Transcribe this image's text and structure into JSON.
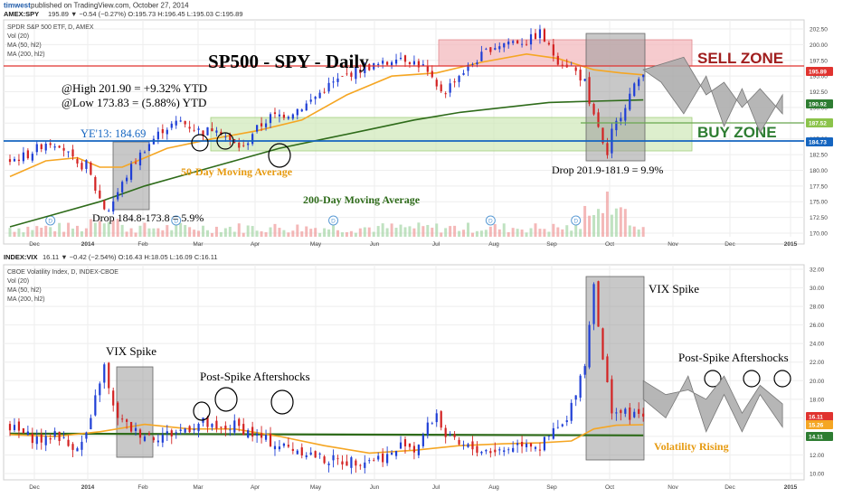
{
  "header": {
    "author": "timwest",
    "published": "published on TradingView.com, October 27, 2014",
    "top_symbol": "AMEX:SPY",
    "top_quote": "195.89 ▼ −0.54 (−0.27%) O:195.73 H:196.45 L:195.03 C:195.89",
    "bottom_symbol": "INDEX:VIX",
    "bottom_quote": "16.11 ▼ −0.42 (−2.54%) O:16.43 H:18.05 L:16.09 C:16.11"
  },
  "chart_data": [
    {
      "type": "candlestick",
      "title": "SP500 - SPY - Daily",
      "legend": [
        "SPDR S&P 500 ETF, D, AMEX",
        "Vol (20)",
        "MA (50, hl2)",
        "MA (200, hl2)"
      ],
      "x_ticks": [
        "Dec",
        "2014",
        "Feb",
        "Mar",
        "Apr",
        "May",
        "Jun",
        "Jul",
        "Aug",
        "Sep",
        "Oct",
        "Nov",
        "Dec",
        "2015"
      ],
      "y_ticks": [
        "202.50",
        "200.00",
        "197.50",
        "195.00",
        "192.50",
        "190.00",
        "187.50",
        "185.00",
        "182.50",
        "180.00",
        "177.50",
        "175.00",
        "172.50",
        "170.00"
      ],
      "ylim": [
        169,
        203.5
      ],
      "price_path": [
        [
          0,
          181.5
        ],
        [
          4,
          182.5
        ],
        [
          8,
          184.5
        ],
        [
          11,
          184.3
        ],
        [
          13,
          182.5
        ],
        [
          15,
          180.5
        ],
        [
          17,
          181
        ],
        [
          19,
          177
        ],
        [
          21,
          174
        ],
        [
          22,
          173.83
        ],
        [
          24,
          176.5
        ],
        [
          27,
          180.5
        ],
        [
          30,
          183.5
        ],
        [
          34,
          186.5
        ],
        [
          38,
          187.8
        ],
        [
          40,
          187
        ],
        [
          43,
          186
        ],
        [
          46,
          187
        ],
        [
          49,
          184.5
        ],
        [
          52,
          183.5
        ],
        [
          54,
          186
        ],
        [
          58,
          188.5
        ],
        [
          62,
          189
        ],
        [
          66,
          190.5
        ],
        [
          71,
          193.5
        ],
        [
          76,
          195.5
        ],
        [
          80,
          196.5
        ],
        [
          84,
          197
        ],
        [
          86,
          198.3
        ],
        [
          89,
          197.5
        ],
        [
          92,
          196.5
        ],
        [
          95,
          193
        ],
        [
          97,
          192.6
        ],
        [
          99,
          194.5
        ],
        [
          103,
          197
        ],
        [
          107,
          199.5
        ],
        [
          111,
          200.5
        ],
        [
          115,
          200.5
        ],
        [
          118,
          201.9
        ],
        [
          120,
          199.5
        ],
        [
          122,
          197.5
        ],
        [
          125,
          196.5
        ],
        [
          128,
          194
        ],
        [
          129,
          190
        ],
        [
          131,
          187
        ],
        [
          132,
          184
        ],
        [
          133,
          181.9
        ],
        [
          134,
          186
        ],
        [
          136,
          189
        ],
        [
          138,
          192
        ],
        [
          140,
          194.5
        ],
        [
          141,
          195.89
        ]
      ],
      "ma50_path": [
        [
          0,
          179
        ],
        [
          8,
          181.5
        ],
        [
          15,
          182
        ],
        [
          20,
          180.5
        ],
        [
          25,
          180.5
        ],
        [
          30,
          182
        ],
        [
          35,
          183.5
        ],
        [
          45,
          185
        ],
        [
          55,
          186.3
        ],
        [
          65,
          188
        ],
        [
          75,
          192
        ],
        [
          85,
          195
        ],
        [
          95,
          195.5
        ],
        [
          105,
          197.2
        ],
        [
          115,
          198.5
        ],
        [
          122,
          197.8
        ],
        [
          130,
          196
        ],
        [
          136,
          195.5
        ],
        [
          141,
          195.2
        ]
      ],
      "ma200_path": [
        [
          0,
          171
        ],
        [
          10,
          173
        ],
        [
          20,
          175
        ],
        [
          30,
          177.5
        ],
        [
          40,
          179.5
        ],
        [
          50,
          181.5
        ],
        [
          60,
          183.5
        ],
        [
          70,
          185
        ],
        [
          80,
          186.5
        ],
        [
          90,
          188
        ],
        [
          100,
          189.2
        ],
        [
          110,
          190
        ],
        [
          120,
          190.8
        ],
        [
          130,
          191
        ],
        [
          141,
          191.2
        ]
      ],
      "projection_resistance": [
        [
          141,
          196
        ],
        [
          145,
          194
        ],
        [
          150,
          189
        ],
        [
          155,
          195
        ],
        [
          159,
          187
        ],
        [
          163,
          193
        ],
        [
          167,
          186
        ],
        [
          172,
          192
        ]
      ],
      "projection_support": [
        [
          150,
          198
        ],
        [
          155,
          192
        ],
        [
          159,
          194
        ],
        [
          163,
          190
        ],
        [
          167,
          193
        ],
        [
          172,
          189
        ]
      ],
      "price_badges": [
        {
          "label": "195.89",
          "color": "#e0332f"
        },
        {
          "label": "190.92",
          "color": "#2e7d32"
        },
        {
          "label": "187.52",
          "color": "#8bc34a"
        },
        {
          "label": "184.73",
          "color": "#1565c0"
        }
      ],
      "annotations": {
        "at_high": "@High 201.90 = +9.32% YTD",
        "at_low": "@Low 173.83 = (5.88%) YTD",
        "ye13": "YE'13: 184.69",
        "ma50_label": "50-Day Moving Average",
        "ma200_label": "200-Day Moving Average",
        "drop1": "Drop 184.8-173.8 = 5.9%",
        "drop2": "Drop 201.9-181.9 = 9.9%",
        "sell_zone": "SELL ZONE",
        "buy_zone": "BUY ZONE"
      },
      "volume_markers": [
        "D",
        "D",
        "D",
        "D",
        "D",
        "D"
      ]
    },
    {
      "type": "candlestick",
      "legend": [
        "CBOE Volatility Index, D, INDEX-CBOE",
        "Vol (20)",
        "MA (50, hl2)",
        "MA (200, hl2)"
      ],
      "x_ticks": [
        "Dec",
        "2014",
        "Feb",
        "Mar",
        "Apr",
        "May",
        "Jun",
        "Jul",
        "Aug",
        "Sep",
        "Oct",
        "Nov",
        "Dec",
        "2015"
      ],
      "y_ticks": [
        "32.00",
        "30.00",
        "28.00",
        "26.00",
        "24.00",
        "22.00",
        "20.00",
        "18.00",
        "16.00",
        "14.00",
        "12.00",
        "10.00"
      ],
      "ylim": [
        9.5,
        32.3
      ],
      "vix_path": [
        [
          0,
          15
        ],
        [
          4,
          14
        ],
        [
          8,
          13.5
        ],
        [
          10,
          14.5
        ],
        [
          13,
          13
        ],
        [
          16,
          13.2
        ],
        [
          18,
          15.5
        ],
        [
          19,
          18
        ],
        [
          20,
          20
        ],
        [
          21,
          21.5
        ],
        [
          22,
          19
        ],
        [
          23,
          17
        ],
        [
          25,
          15.5
        ],
        [
          28,
          14.5
        ],
        [
          32,
          14
        ],
        [
          36,
          14.3
        ],
        [
          40,
          15
        ],
        [
          43,
          15.5
        ],
        [
          46,
          14.5
        ],
        [
          50,
          15.2
        ],
        [
          53,
          14.5
        ],
        [
          55,
          14
        ],
        [
          60,
          13
        ],
        [
          65,
          12.5
        ],
        [
          70,
          11.5
        ],
        [
          75,
          11.3
        ],
        [
          80,
          11.5
        ],
        [
          85,
          12
        ],
        [
          88,
          13.5
        ],
        [
          90,
          12.5
        ],
        [
          93,
          15
        ],
        [
          95,
          16.5
        ],
        [
          97,
          14
        ],
        [
          100,
          13
        ],
        [
          105,
          12.5
        ],
        [
          110,
          12.5
        ],
        [
          112,
          13
        ],
        [
          115,
          13.5
        ],
        [
          118,
          12.8
        ],
        [
          121,
          14.5
        ],
        [
          124,
          15.5
        ],
        [
          126,
          19
        ],
        [
          128,
          22
        ],
        [
          129,
          26
        ],
        [
          130,
          31
        ],
        [
          131,
          26
        ],
        [
          132,
          22
        ],
        [
          133,
          19.5
        ],
        [
          134,
          17
        ],
        [
          136,
          16.5
        ],
        [
          139,
          16.2
        ],
        [
          141,
          16.11
        ]
      ],
      "vma50_path": [
        [
          0,
          14.2
        ],
        [
          10,
          14
        ],
        [
          20,
          14.5
        ],
        [
          30,
          15.3
        ],
        [
          40,
          14.8
        ],
        [
          50,
          14.8
        ],
        [
          60,
          14
        ],
        [
          70,
          13
        ],
        [
          80,
          12.2
        ],
        [
          90,
          12.5
        ],
        [
          100,
          13
        ],
        [
          110,
          13.2
        ],
        [
          118,
          13.3
        ],
        [
          125,
          13.5
        ],
        [
          130,
          14.8
        ],
        [
          135,
          15.2
        ],
        [
          141,
          15.26
        ]
      ],
      "vma200_path": [
        [
          0,
          14.3
        ],
        [
          141,
          14.11
        ]
      ],
      "projection": [
        [
          141,
          18
        ],
        [
          146,
          16
        ],
        [
          151,
          20.5
        ],
        [
          155,
          14.5
        ],
        [
          159,
          18.5
        ],
        [
          163,
          14.5
        ],
        [
          167,
          18.5
        ],
        [
          172,
          15
        ]
      ],
      "projection2": [
        [
          141,
          20
        ],
        [
          146,
          18.5
        ],
        [
          151,
          19
        ],
        [
          155,
          18
        ],
        [
          159,
          20.5
        ],
        [
          163,
          16.5
        ],
        [
          167,
          19.5
        ],
        [
          172,
          17.5
        ]
      ],
      "price_badges": [
        {
          "label": "16.11",
          "color": "#e0332f"
        },
        {
          "label": "15.26",
          "color": "#f5a623"
        },
        {
          "label": "14.11",
          "color": "#2e7d32"
        }
      ],
      "annotations": {
        "vix_spike_1": "VIX Spike",
        "vix_spike_2": "VIX Spike",
        "aftershocks_1": "Post-Spike Aftershocks",
        "aftershocks_2": "Post-Spike Aftershocks",
        "volatility_rising": "Volatility Rising"
      }
    }
  ]
}
